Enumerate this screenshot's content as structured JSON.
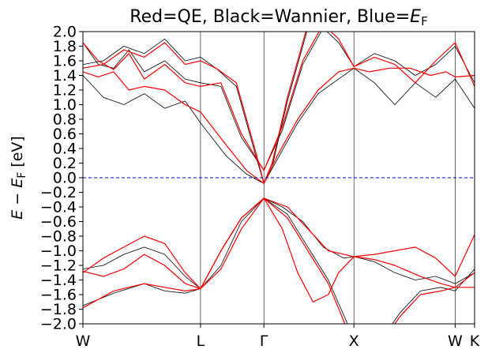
{
  "chart_data": {
    "type": "line",
    "title": {
      "main": "Red=QE, Black=Wannier, Blue=",
      "sym": "E",
      "sub": "F"
    },
    "ylabel": {
      "prefix": "E − E",
      "sub": "F",
      "suffix": " [eV]"
    },
    "ylim": [
      -2.0,
      2.0
    ],
    "xlim": [
      0.0,
      3.83
    ],
    "yticks": [
      -2.0,
      -1.8,
      -1.6,
      -1.4,
      -1.2,
      -1.0,
      -0.8,
      -0.6,
      -0.4,
      -0.2,
      0.0,
      0.2,
      0.4,
      0.6,
      0.8,
      1.0,
      1.2,
      1.4,
      1.6,
      1.8,
      2.0
    ],
    "ytick_labels": [
      "−2.0",
      "−1.8",
      "−1.6",
      "−1.4",
      "−1.2",
      "−1.0",
      "−0.8",
      "−0.6",
      "−0.4",
      "−0.2",
      "0.0",
      "0.2",
      "0.4",
      "0.6",
      "0.8",
      "1.0",
      "1.2",
      "1.4",
      "1.6",
      "1.8",
      "2.0"
    ],
    "xticks": [
      {
        "label": "W",
        "x": 0.0
      },
      {
        "label": "L",
        "x": 1.15
      },
      {
        "label": "Γ",
        "x": 1.77
      },
      {
        "label": "X",
        "x": 2.65
      },
      {
        "label": "W",
        "x": 3.64
      },
      {
        "label": "K",
        "x": 3.83
      }
    ],
    "fermi_level": 0.0,
    "colors": {
      "qe": "#ff0000",
      "wannier": "#000000",
      "fermi": "#0000cc"
    },
    "series": [
      {
        "name": "QE band 1",
        "color": "qe",
        "x": [
          0.0,
          0.3,
          0.6,
          0.8,
          1.0,
          1.15,
          1.35,
          1.55,
          1.77,
          2.0,
          2.2,
          2.4,
          2.65,
          2.9,
          3.1,
          3.3,
          3.5,
          3.64,
          3.83
        ],
        "y": [
          -1.78,
          -1.55,
          -1.45,
          -1.5,
          -1.55,
          -1.52,
          -1.0,
          -0.55,
          -0.28,
          -0.55,
          -1.0,
          -1.45,
          -2.3,
          -2.3,
          -1.9,
          -1.6,
          -1.55,
          -1.5,
          -1.3
        ]
      },
      {
        "name": "QE band 2",
        "color": "qe",
        "x": [
          0.0,
          0.2,
          0.4,
          0.6,
          0.8,
          1.0,
          1.15,
          1.35,
          1.55,
          1.77,
          2.0,
          2.2,
          2.4,
          2.65,
          2.85,
          3.05,
          3.3,
          3.5,
          3.64,
          3.83
        ],
        "y": [
          -1.3,
          -1.1,
          -0.95,
          -0.8,
          -0.9,
          -1.3,
          -1.52,
          -1.0,
          -0.55,
          -0.28,
          -0.4,
          -0.7,
          -1.0,
          -1.08,
          -1.12,
          -1.2,
          -1.35,
          -1.45,
          -1.5,
          -1.5
        ]
      },
      {
        "name": "QE band 3",
        "color": "qe",
        "x": [
          0.0,
          0.2,
          0.4,
          0.6,
          0.8,
          1.0,
          1.15,
          1.35,
          1.55,
          1.77,
          1.95,
          2.1,
          2.25,
          2.4,
          2.5,
          2.65,
          2.85,
          3.05,
          3.25,
          3.45,
          3.64,
          3.83
        ],
        "y": [
          -1.28,
          -1.35,
          -1.25,
          -1.05,
          -1.2,
          -1.45,
          -1.52,
          -1.25,
          -0.7,
          -0.28,
          -0.7,
          -1.3,
          -1.7,
          -1.6,
          -1.3,
          -1.08,
          -1.05,
          -1.0,
          -0.95,
          -1.1,
          -1.35,
          -0.78
        ]
      },
      {
        "name": "QE band 4",
        "color": "qe",
        "x": [
          0.0,
          0.15,
          0.3,
          0.45,
          0.6,
          0.8,
          1.0,
          1.15,
          1.4,
          1.6,
          1.77,
          1.9,
          2.1,
          2.3,
          2.5,
          2.65,
          2.8,
          3.0,
          3.2,
          3.4,
          3.55,
          3.64,
          3.83
        ],
        "y": [
          1.45,
          1.38,
          1.45,
          1.2,
          1.25,
          1.2,
          1.0,
          0.9,
          0.45,
          0.1,
          -0.08,
          0.3,
          0.8,
          1.2,
          1.45,
          1.5,
          1.45,
          1.5,
          1.5,
          1.4,
          1.45,
          1.38,
          1.4
        ]
      },
      {
        "name": "QE band 5",
        "color": "qe",
        "x": [
          0.0,
          0.15,
          0.3,
          0.45,
          0.6,
          0.8,
          1.0,
          1.15,
          1.35,
          1.55,
          1.77,
          1.95,
          2.15,
          2.35,
          2.5,
          2.65,
          2.85,
          3.05,
          3.25,
          3.45,
          3.64,
          3.83
        ],
        "y": [
          1.85,
          1.6,
          1.48,
          1.7,
          1.35,
          1.55,
          1.3,
          1.25,
          1.3,
          0.6,
          0.1,
          0.7,
          1.6,
          2.1,
          1.9,
          1.52,
          1.65,
          1.55,
          1.3,
          1.6,
          1.85,
          1.25
        ]
      },
      {
        "name": "QE band 6",
        "color": "qe",
        "x": [
          0.0,
          0.2,
          0.4,
          0.6,
          0.8,
          1.0,
          1.15,
          1.3,
          1.5,
          1.7,
          1.77,
          1.85,
          2.0,
          2.2,
          2.35
        ],
        "y": [
          1.5,
          1.55,
          1.75,
          1.65,
          1.85,
          1.55,
          1.6,
          1.5,
          1.3,
          0.3,
          -0.08,
          0.2,
          1.1,
          2.1,
          2.5
        ]
      },
      {
        "name": "Wannier band 1",
        "color": "wannier",
        "x": [
          0.0,
          0.3,
          0.6,
          0.8,
          1.0,
          1.15,
          1.35,
          1.55,
          1.77,
          2.0,
          2.2,
          2.4,
          2.65,
          2.9,
          3.1,
          3.3,
          3.5,
          3.64,
          3.83
        ],
        "y": [
          -1.75,
          -1.58,
          -1.45,
          -1.55,
          -1.58,
          -1.52,
          -1.0,
          -0.55,
          -0.28,
          -0.5,
          -0.95,
          -1.4,
          -2.2,
          -2.25,
          -1.85,
          -1.55,
          -1.5,
          -1.55,
          -1.25
        ]
      },
      {
        "name": "Wannier band 2",
        "color": "wannier",
        "x": [
          0.0,
          0.2,
          0.4,
          0.6,
          0.8,
          1.0,
          1.15,
          1.35,
          1.55,
          1.77,
          1.95,
          2.15,
          2.35,
          2.55,
          2.65,
          2.85,
          3.05,
          3.25,
          3.45,
          3.64,
          3.83
        ],
        "y": [
          -1.25,
          -1.2,
          -1.05,
          -0.95,
          -1.05,
          -1.35,
          -1.52,
          -1.2,
          -0.6,
          -0.28,
          -0.4,
          -0.6,
          -0.95,
          -1.1,
          -1.08,
          -1.15,
          -1.3,
          -1.4,
          -1.35,
          -1.45,
          -1.3
        ]
      },
      {
        "name": "Wannier band 3",
        "color": "wannier",
        "x": [
          0.0,
          0.2,
          0.4,
          0.6,
          0.8,
          1.0,
          1.15,
          1.4,
          1.6,
          1.77,
          1.9,
          2.1,
          2.3,
          2.5,
          2.65,
          2.85,
          3.05,
          3.25,
          3.45,
          3.64,
          3.83
        ],
        "y": [
          1.4,
          1.1,
          1.0,
          1.15,
          0.95,
          1.05,
          0.75,
          0.3,
          0.05,
          -0.08,
          0.25,
          0.75,
          1.15,
          1.35,
          1.5,
          1.3,
          1.0,
          1.3,
          1.1,
          1.35,
          0.95
        ]
      },
      {
        "name": "Wannier band 4",
        "color": "wannier",
        "x": [
          0.0,
          0.15,
          0.3,
          0.45,
          0.6,
          0.8,
          1.0,
          1.15,
          1.35,
          1.55,
          1.77,
          1.95,
          2.15,
          2.35,
          2.5,
          2.65,
          2.85,
          3.05,
          3.25,
          3.45,
          3.64,
          3.83
        ],
        "y": [
          1.85,
          1.55,
          1.5,
          1.75,
          1.45,
          1.6,
          1.35,
          1.3,
          1.25,
          0.55,
          0.1,
          0.65,
          1.55,
          2.05,
          1.85,
          1.52,
          1.7,
          1.6,
          1.4,
          1.55,
          1.8,
          1.3
        ]
      },
      {
        "name": "Wannier band 5",
        "color": "wannier",
        "x": [
          0.0,
          0.2,
          0.4,
          0.6,
          0.8,
          1.0,
          1.15,
          1.3,
          1.5,
          1.7,
          1.77,
          1.85,
          2.0,
          2.2,
          2.35
        ],
        "y": [
          1.55,
          1.6,
          1.8,
          1.7,
          1.9,
          1.6,
          1.65,
          1.5,
          1.25,
          0.25,
          -0.08,
          0.15,
          1.05,
          2.05,
          2.5
        ]
      }
    ]
  }
}
